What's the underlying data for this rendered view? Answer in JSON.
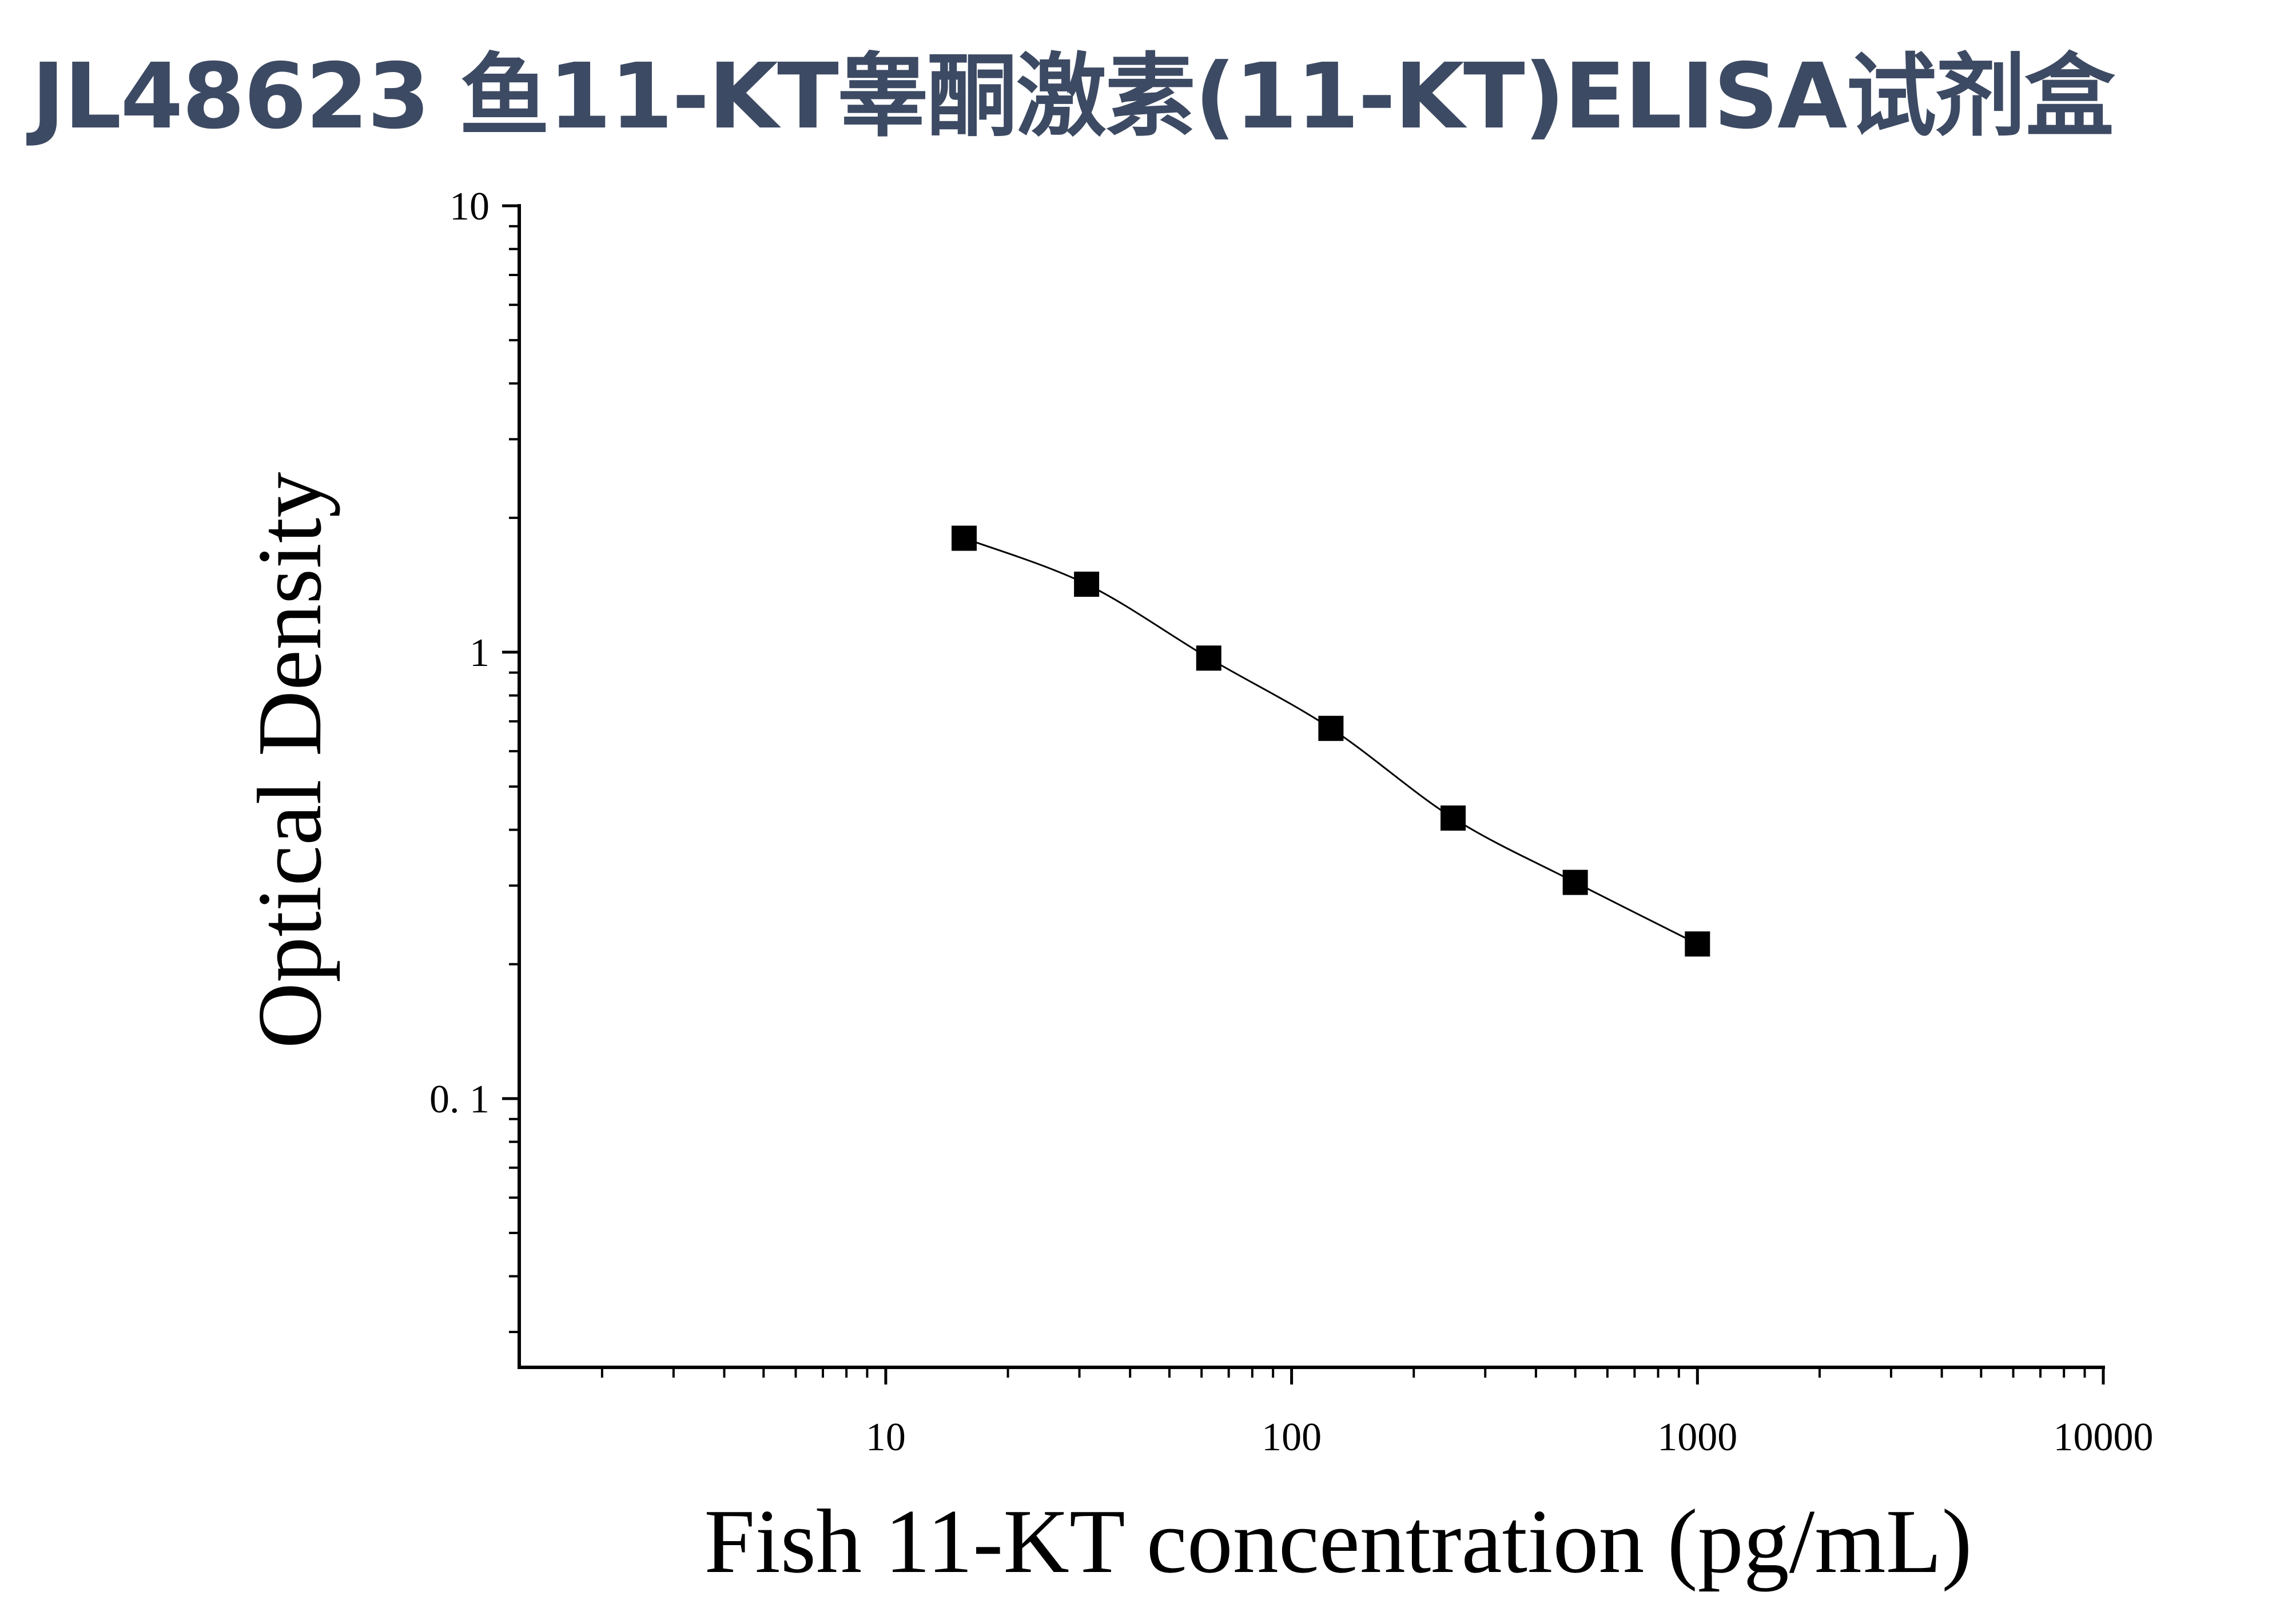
{
  "title": "JL48623 鱼11-KT睾酮激素(11-KT)ELISA试剂盒",
  "chart_data": {
    "type": "scatter",
    "title": "",
    "xlabel": "Fish 11-KT concentration (pg/mL)",
    "ylabel": "Optical Density",
    "x_scale": "log",
    "y_scale": "log",
    "xlim": [
      1.25,
      10000
    ],
    "ylim": [
      0.025,
      10
    ],
    "x_ticks": [
      10,
      100,
      1000,
      10000
    ],
    "x_tick_labels": [
      "10",
      "100",
      "1000",
      "10000"
    ],
    "y_ticks": [
      0.1,
      1,
      10
    ],
    "y_tick_labels": [
      "0. 1",
      "1",
      "10"
    ],
    "grid": false,
    "legend": "none",
    "series": [
      {
        "x": [
          15.6,
          31.25,
          62.5,
          125,
          250,
          500,
          1000
        ],
        "y": [
          1.8,
          1.42,
          0.97,
          0.675,
          0.425,
          0.305,
          0.222
        ],
        "marker": "square",
        "fit_line": true
      }
    ],
    "colors": {
      "marker": "#000000",
      "line": "#000000",
      "axis": "#000000"
    }
  }
}
